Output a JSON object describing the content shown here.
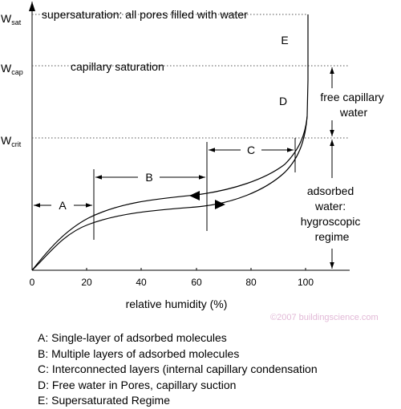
{
  "levels": {
    "sat": {
      "base": "W",
      "sub": "sat",
      "label": "supersaturation: all pores filled with water"
    },
    "cap": {
      "base": "W",
      "sub": "cap",
      "label": "capillary saturation"
    },
    "crit": {
      "base": "W",
      "sub": "crit"
    }
  },
  "x_axis": {
    "label": "relative humidity (%)",
    "ticks": [
      "0",
      "20",
      "40",
      "60",
      "80",
      "100"
    ]
  },
  "regions": {
    "A": "A",
    "B": "B",
    "C": "C",
    "D": "D",
    "E": "E"
  },
  "annotations": {
    "free_water": [
      "free capillary",
      "water"
    ],
    "adsorbed_water": [
      "adsorbed",
      "water:",
      "hygroscopic",
      "regime"
    ]
  },
  "legend": [
    "A:  Single-layer of adsorbed molecules",
    "B:  Multiple layers of adsorbed molecules",
    "C:  Interconnected layers (internal capillary condensation",
    "D:  Free water in Pores, capillary suction",
    "E:  Supersaturated Regime"
  ],
  "watermark": "©2007 buildingscience.com"
}
